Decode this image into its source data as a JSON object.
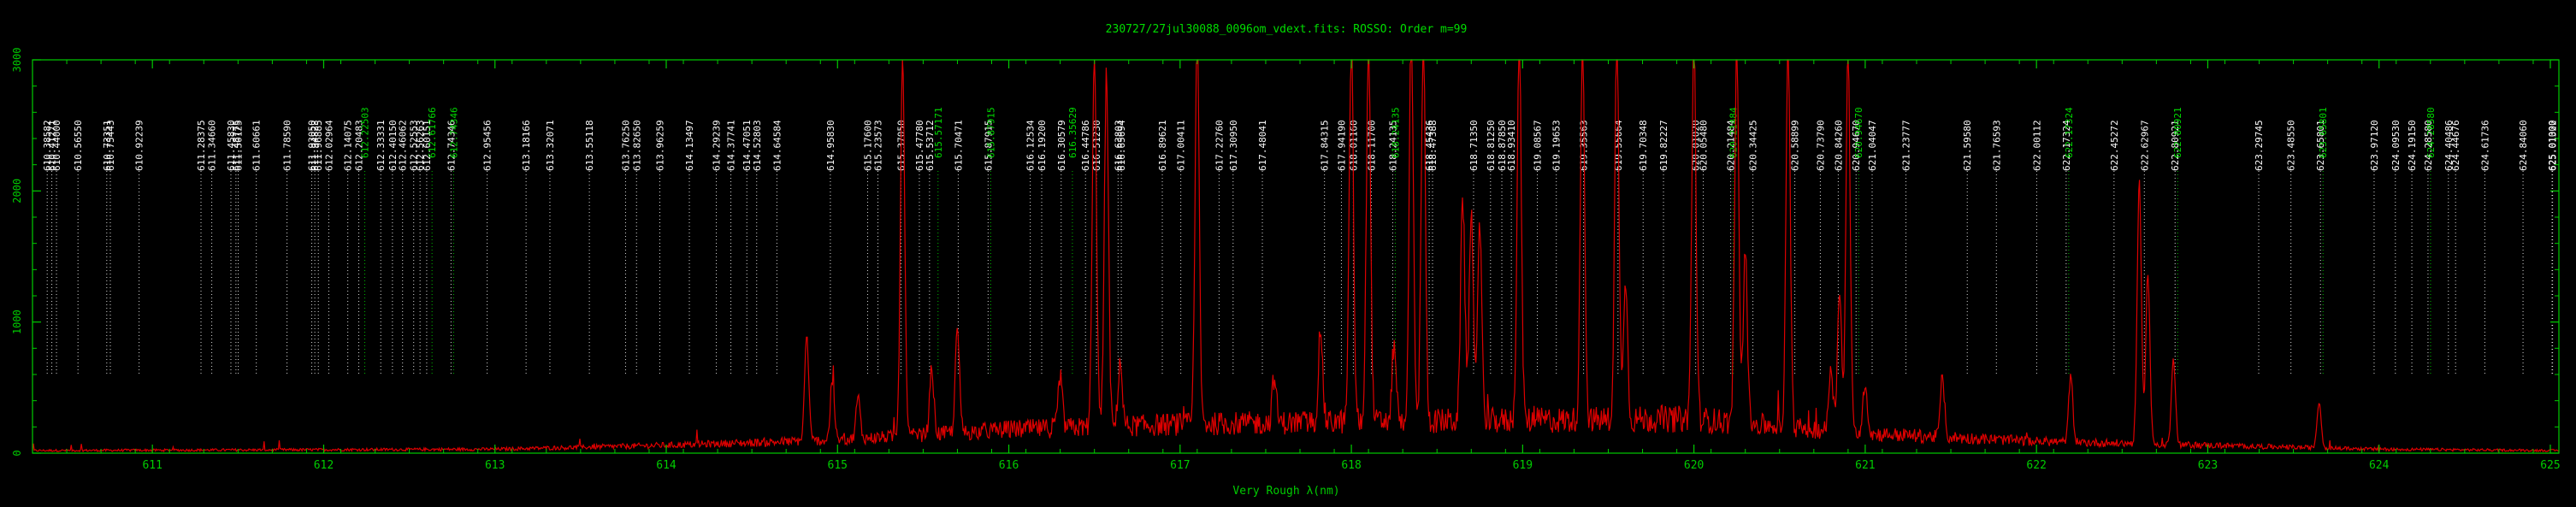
{
  "chart_data": {
    "type": "line",
    "title": "230727/27jul30088_0096om_vdext.fits: ROSSO: Order m=99",
    "xlabel": "Very Rough λ(nm)",
    "ylabel": "",
    "xlim": [
      610.3,
      625.05
    ],
    "ylim": [
      0,
      3000
    ],
    "x_ticks": [
      "611",
      "612",
      "613",
      "614",
      "615",
      "616",
      "617",
      "618",
      "619",
      "620",
      "621",
      "622",
      "623",
      "624",
      "625"
    ],
    "y_ticks": [
      "0",
      "1000",
      "2000",
      "3000"
    ],
    "grid": false,
    "colors": {
      "background": "#000000",
      "axes": "#00cc00",
      "spectrum": "#dd0000",
      "label_white": "#ffffff",
      "label_green": "#00dd00"
    },
    "series": [
      {
        "peaks": [
          [
            614.82,
            800
          ],
          [
            614.97,
            420
          ],
          [
            615.12,
            320
          ],
          [
            615.38,
            2950
          ],
          [
            615.55,
            500
          ],
          [
            615.7,
            800
          ],
          [
            616.3,
            400
          ],
          [
            616.5,
            2900
          ],
          [
            616.57,
            2700
          ],
          [
            616.65,
            500
          ],
          [
            617.1,
            2950
          ],
          [
            617.55,
            350
          ],
          [
            617.82,
            720
          ],
          [
            618.0,
            2950
          ],
          [
            618.1,
            2950
          ],
          [
            618.25,
            600
          ],
          [
            618.35,
            2950
          ],
          [
            618.42,
            2950
          ],
          [
            618.65,
            1700
          ],
          [
            618.7,
            1600
          ],
          [
            618.75,
            1500
          ],
          [
            618.98,
            2950
          ],
          [
            619.35,
            2950
          ],
          [
            619.55,
            2950
          ],
          [
            619.6,
            1100
          ],
          [
            620.0,
            2950
          ],
          [
            620.25,
            2900
          ],
          [
            620.3,
            1300
          ],
          [
            620.55,
            2950
          ],
          [
            620.8,
            500
          ],
          [
            620.85,
            1100
          ],
          [
            620.9,
            2950
          ],
          [
            621.0,
            400
          ],
          [
            621.45,
            450
          ],
          [
            622.2,
            500
          ],
          [
            622.6,
            2000
          ],
          [
            622.65,
            1300
          ],
          [
            622.8,
            650
          ],
          [
            623.65,
            350
          ]
        ],
        "baseline": [
          [
            610.3,
            20
          ],
          [
            613.0,
            30
          ],
          [
            614.0,
            60
          ],
          [
            615.0,
            100
          ],
          [
            616.0,
            180
          ],
          [
            617.0,
            220
          ],
          [
            618.0,
            240
          ],
          [
            619.0,
            250
          ],
          [
            620.0,
            260
          ],
          [
            621.0,
            150
          ],
          [
            622.0,
            90
          ],
          [
            623.0,
            60
          ],
          [
            624.0,
            30
          ],
          [
            625.05,
            20
          ]
        ]
      }
    ],
    "line_labels": [
      {
        "w": "610.38582",
        "c": "w"
      },
      {
        "w": "610.41271",
        "c": "w"
      },
      {
        "w": "610.44000",
        "c": "w"
      },
      {
        "w": "610.56550",
        "c": "w"
      },
      {
        "w": "610.73351",
        "c": "w"
      },
      {
        "w": "610.75443",
        "c": "w"
      },
      {
        "w": "610.92239",
        "c": "w"
      },
      {
        "w": "611.28375",
        "c": "w"
      },
      {
        "w": "611.34660",
        "c": "w"
      },
      {
        "w": "611.45830",
        "c": "w"
      },
      {
        "w": "611.48775",
        "c": "w"
      },
      {
        "w": "611.50125",
        "c": "w"
      },
      {
        "w": "611.60661",
        "c": "w"
      },
      {
        "w": "611.78590",
        "c": "w"
      },
      {
        "w": "611.93050",
        "c": "w"
      },
      {
        "w": "611.94823",
        "c": "w"
      },
      {
        "w": "611.96885",
        "c": "w"
      },
      {
        "w": "612.02964",
        "c": "w"
      },
      {
        "w": "612.14075",
        "c": "w"
      },
      {
        "w": "612.20483",
        "c": "w"
      },
      {
        "w": "612.22503",
        "c": "g"
      },
      {
        "w": "612.33331",
        "c": "w"
      },
      {
        "w": "612.40150",
        "c": "w"
      },
      {
        "w": "612.46062",
        "c": "w"
      },
      {
        "w": "612.52553",
        "c": "w"
      },
      {
        "w": "612.56263",
        "c": "w"
      },
      {
        "w": "612.60151",
        "c": "w"
      },
      {
        "w": "612.61766",
        "c": "g"
      },
      {
        "w": "612.74346",
        "c": "w"
      },
      {
        "w": "612.74346",
        "c": "g"
      },
      {
        "w": "612.95456",
        "c": "w"
      },
      {
        "w": "613.18166",
        "c": "w"
      },
      {
        "w": "613.32071",
        "c": "w"
      },
      {
        "w": "613.55118",
        "c": "w"
      },
      {
        "w": "613.76250",
        "c": "w"
      },
      {
        "w": "613.82650",
        "c": "w"
      },
      {
        "w": "613.96259",
        "c": "w"
      },
      {
        "w": "614.13497",
        "c": "w"
      },
      {
        "w": "614.29239",
        "c": "w"
      },
      {
        "w": "614.37741",
        "c": "w"
      },
      {
        "w": "614.47051",
        "c": "w"
      },
      {
        "w": "614.52803",
        "c": "w"
      },
      {
        "w": "614.64584",
        "c": "w"
      },
      {
        "w": "614.95830",
        "c": "w"
      },
      {
        "w": "615.17600",
        "c": "w"
      },
      {
        "w": "615.23573",
        "c": "w"
      },
      {
        "w": "615.37050",
        "c": "w"
      },
      {
        "w": "615.47780",
        "c": "w"
      },
      {
        "w": "615.53712",
        "c": "w"
      },
      {
        "w": "615.57171",
        "c": "g"
      },
      {
        "w": "615.70471",
        "c": "w"
      },
      {
        "w": "615.87915",
        "c": "w"
      },
      {
        "w": "615.87915",
        "c": "g"
      },
      {
        "w": "616.12534",
        "c": "w"
      },
      {
        "w": "616.19200",
        "c": "w"
      },
      {
        "w": "616.30579",
        "c": "w"
      },
      {
        "w": "616.35629",
        "c": "g"
      },
      {
        "w": "616.44786",
        "c": "w"
      },
      {
        "w": "616.51230",
        "c": "w"
      },
      {
        "w": "616.63803",
        "c": "w"
      },
      {
        "w": "616.65694",
        "c": "w"
      },
      {
        "w": "616.89621",
        "c": "w"
      },
      {
        "w": "617.00411",
        "c": "w"
      },
      {
        "w": "617.22760",
        "c": "w"
      },
      {
        "w": "617.30950",
        "c": "w"
      },
      {
        "w": "617.48041",
        "c": "w"
      },
      {
        "w": "617.84315",
        "c": "w"
      },
      {
        "w": "617.94190",
        "c": "w"
      },
      {
        "w": "618.01160",
        "c": "w"
      },
      {
        "w": "618.11700",
        "c": "w"
      },
      {
        "w": "618.24135",
        "c": "w"
      },
      {
        "w": "618.24135",
        "c": "g"
      },
      {
        "w": "618.45436",
        "c": "w"
      },
      {
        "w": "618.47388",
        "c": "w"
      },
      {
        "w": "618.71350",
        "c": "w"
      },
      {
        "w": "618.81250",
        "c": "w"
      },
      {
        "w": "618.87850",
        "c": "w"
      },
      {
        "w": "618.93410",
        "c": "w"
      },
      {
        "w": "619.08567",
        "c": "w"
      },
      {
        "w": "619.19653",
        "c": "w"
      },
      {
        "w": "619.35563",
        "c": "w"
      },
      {
        "w": "619.55664",
        "c": "w"
      },
      {
        "w": "619.70348",
        "c": "w"
      },
      {
        "w": "619.82227",
        "c": "w"
      },
      {
        "w": "620.01020",
        "c": "w"
      },
      {
        "w": "620.05480",
        "c": "w"
      },
      {
        "w": "620.21484",
        "c": "w"
      },
      {
        "w": "620.21484",
        "c": "g"
      },
      {
        "w": "620.34425",
        "c": "w"
      },
      {
        "w": "620.58899",
        "c": "w"
      },
      {
        "w": "620.73790",
        "c": "w"
      },
      {
        "w": "620.84260",
        "c": "w"
      },
      {
        "w": "620.94670",
        "c": "w"
      },
      {
        "w": "620.94670",
        "c": "g"
      },
      {
        "w": "621.04047",
        "c": "w"
      },
      {
        "w": "621.23777",
        "c": "w"
      },
      {
        "w": "621.59580",
        "c": "w"
      },
      {
        "w": "621.76593",
        "c": "w"
      },
      {
        "w": "622.00112",
        "c": "w"
      },
      {
        "w": "622.17324",
        "c": "w"
      },
      {
        "w": "622.17324",
        "c": "g"
      },
      {
        "w": "622.45272",
        "c": "w"
      },
      {
        "w": "622.62967",
        "c": "w"
      },
      {
        "w": "622.80921",
        "c": "w"
      },
      {
        "w": "622.80921",
        "c": "g"
      },
      {
        "w": "623.29745",
        "c": "w"
      },
      {
        "w": "623.48550",
        "c": "w"
      },
      {
        "w": "623.65801",
        "c": "w"
      },
      {
        "w": "623.65801",
        "c": "g"
      },
      {
        "w": "623.97120",
        "c": "w"
      },
      {
        "w": "624.09530",
        "c": "w"
      },
      {
        "w": "624.19150",
        "c": "w"
      },
      {
        "w": "624.28580",
        "c": "w"
      },
      {
        "w": "624.28580",
        "c": "g"
      },
      {
        "w": "624.40486",
        "c": "w"
      },
      {
        "w": "624.44676",
        "c": "w"
      },
      {
        "w": "624.61736",
        "c": "w"
      },
      {
        "w": "624.84060",
        "c": "w"
      },
      {
        "w": "625.01000",
        "c": "w"
      },
      {
        "w": "625.01322",
        "c": "w"
      }
    ]
  }
}
